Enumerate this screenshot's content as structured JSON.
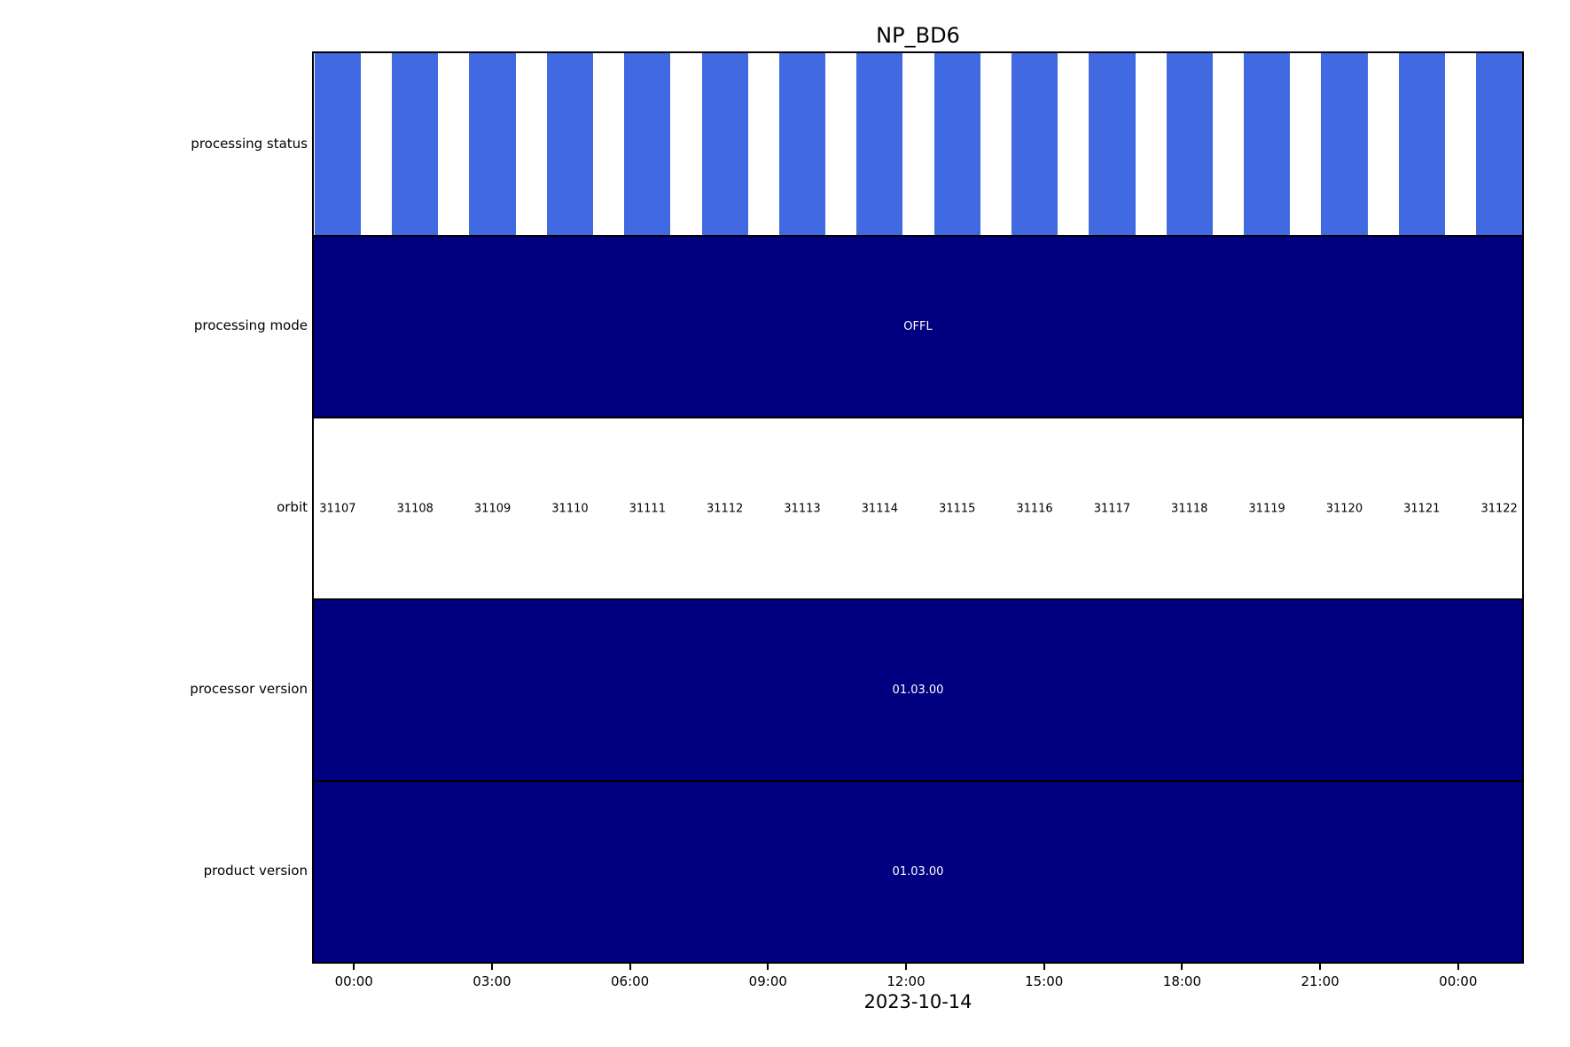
{
  "chart_data": {
    "type": "bar",
    "subtype": "categorical-timeline",
    "title": "NP_BD6",
    "xlabel": "2023-10-14",
    "x_axis": {
      "unit": "hours",
      "range_hours": [
        -0.91,
        25.43
      ],
      "tick_hours": [
        0,
        3,
        6,
        9,
        12,
        15,
        18,
        21,
        24
      ],
      "tick_labels": [
        "00:00",
        "03:00",
        "06:00",
        "09:00",
        "12:00",
        "15:00",
        "18:00",
        "21:00",
        "00:00"
      ],
      "date_label": "2023-10-14"
    },
    "orbit_track": {
      "numbers": [
        31107,
        31108,
        31109,
        31110,
        31111,
        31112,
        31113,
        31114,
        31115,
        31116,
        31117,
        31118,
        31119,
        31120,
        31121,
        31122
      ],
      "first_center_hour": -0.39,
      "spacing_hours": 1.688
    },
    "rows": [
      {
        "label": "processing status",
        "kind": "stripes",
        "color": "#4169e1",
        "bar_width_hours": 1.01,
        "bars_per_orbit": 1
      },
      {
        "label": "processing mode",
        "kind": "band",
        "color": "#000080",
        "text": "OFFL",
        "text_color": "#ffffff"
      },
      {
        "label": "orbit",
        "kind": "labels",
        "text_color": "#000000"
      },
      {
        "label": "processor version",
        "kind": "band",
        "color": "#000080",
        "text": "01.03.00",
        "text_color": "#ffffff"
      },
      {
        "label": "product version",
        "kind": "band",
        "color": "#000080",
        "text": "01.03.00",
        "text_color": "#ffffff"
      }
    ],
    "legend": null,
    "grid": false
  },
  "colors": {
    "stripe_blue": "#4169e1",
    "navy": "#000080",
    "axis": "#000000",
    "background": "#ffffff"
  }
}
